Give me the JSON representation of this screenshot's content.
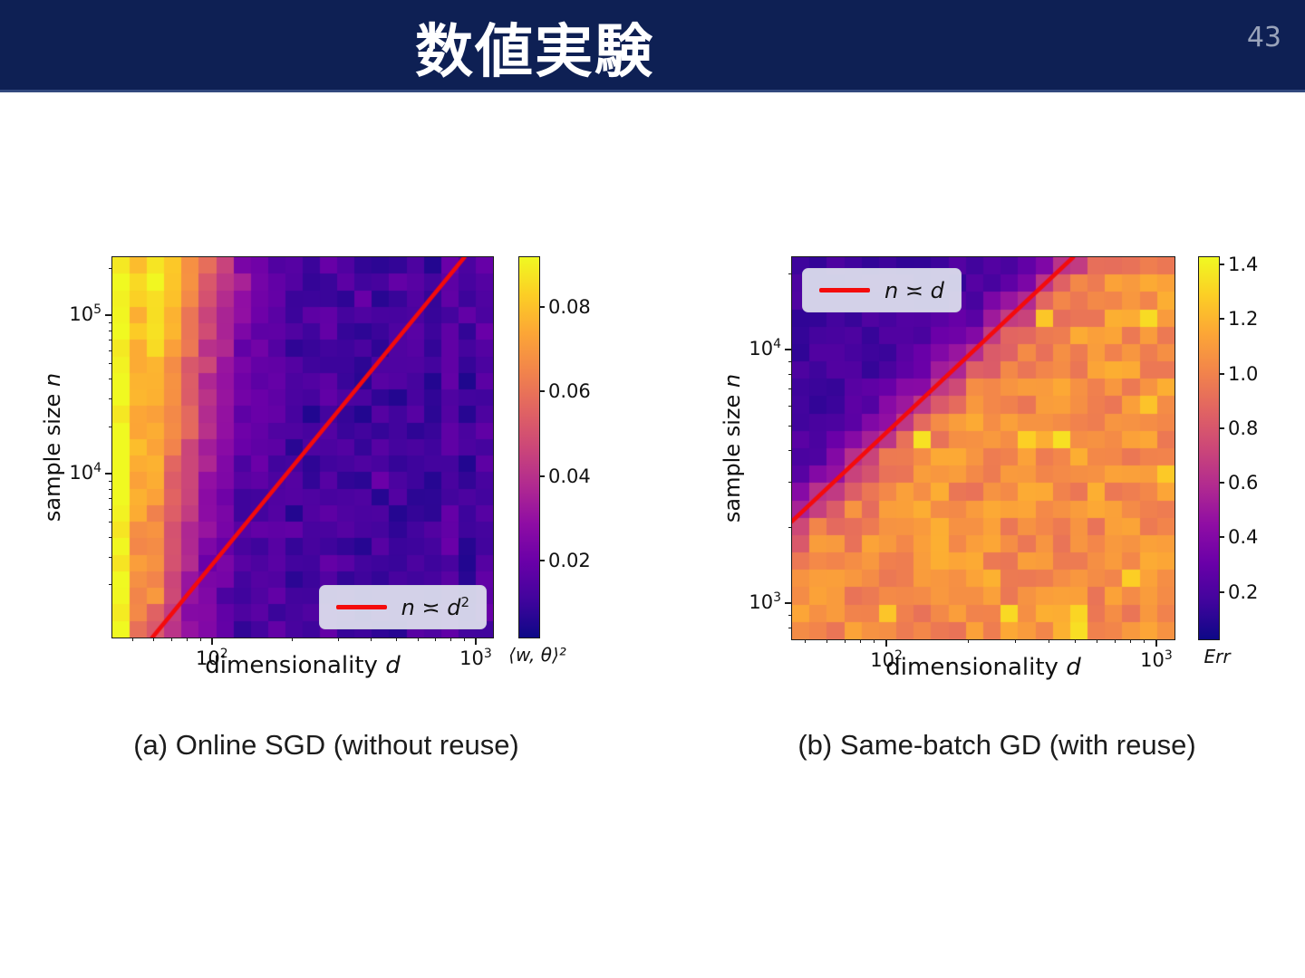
{
  "slide": {
    "title": "数値実験",
    "page_number": "43",
    "header_bg": "#0e2054",
    "header_line": "#33497e"
  },
  "captions": {
    "a": "(a) Online SGD (without reuse)",
    "b": "(b) Same-batch GD (with reuse)"
  },
  "colormap": {
    "name": "plasma",
    "stops": [
      [
        0.0,
        "#0d0887"
      ],
      [
        0.1,
        "#41049d"
      ],
      [
        0.2,
        "#6a00a8"
      ],
      [
        0.3,
        "#8f0da4"
      ],
      [
        0.4,
        "#b12a90"
      ],
      [
        0.5,
        "#cc4778"
      ],
      [
        0.6,
        "#e16462"
      ],
      [
        0.7,
        "#f2844b"
      ],
      [
        0.8,
        "#fca636"
      ],
      [
        0.9,
        "#fcce25"
      ],
      [
        1.0,
        "#f0f921"
      ]
    ]
  },
  "line_color": "#f40b0b",
  "chart_data": [
    {
      "id": "a",
      "type": "heatmap",
      "caption": "(a) Online SGD (without reuse)",
      "xlabel": {
        "text": "dimensionality ",
        "math": "d"
      },
      "ylabel": {
        "text": "sample size ",
        "math": "n"
      },
      "x_log_range": [
        1.622,
        3.065
      ],
      "y_log_range": [
        2.966,
        5.368
      ],
      "x_ticks": [
        {
          "b": "10",
          "e": "2",
          "frac": 0.262
        },
        {
          "b": "10",
          "e": "3",
          "frac": 0.955
        }
      ],
      "y_ticks": [
        {
          "b": "10",
          "e": "4",
          "frac": 0.431
        },
        {
          "b": "10",
          "e": "5",
          "frac": 0.847
        }
      ],
      "grid": {
        "cols": 22,
        "rows": 23
      },
      "cmap_range": [
        0.002,
        0.092
      ],
      "colorbar": {
        "label": "⟨w, θ⟩²",
        "ticks": [
          {
            "label": "0.08",
            "value": 0.08
          },
          {
            "label": "0.06",
            "value": 0.06
          },
          {
            "label": "0.04",
            "value": 0.04
          },
          {
            "label": "0.02",
            "value": 0.02
          }
        ]
      },
      "red_line": {
        "p1": [
          0.105,
          0.0
        ],
        "p2": [
          0.925,
          1.0
        ],
        "legend": {
          "lhs": "n",
          "rel": " ≍ ",
          "rhs": "d",
          "sup": "2"
        },
        "legend_pos": "bottom-right"
      },
      "field": {
        "model": "x-threshold",
        "lo": 0.012,
        "hi": 0.088,
        "center_fx_bottom": 0.12,
        "center_fx_top": 0.27,
        "width": 0.065,
        "noise_cell": 0.005,
        "noise_col": 0.004,
        "edge_boost_fx": 0.04,
        "edge_boost_value": 0.091,
        "seed": 7
      },
      "sample_values_d50_to_d1000_top_to_bottom": [
        [
          0.09,
          0.07,
          0.05,
          0.03,
          0.02,
          0.015
        ],
        [
          0.09,
          0.065,
          0.045,
          0.025,
          0.018,
          0.012
        ],
        [
          0.085,
          0.06,
          0.04,
          0.022,
          0.015,
          0.012
        ],
        [
          0.085,
          0.055,
          0.03,
          0.02,
          0.013,
          0.011
        ],
        [
          0.08,
          0.05,
          0.025,
          0.015,
          0.012,
          0.01
        ],
        [
          0.075,
          0.04,
          0.02,
          0.013,
          0.011,
          0.009
        ]
      ]
    },
    {
      "id": "b",
      "type": "heatmap",
      "caption": "(b) Same-batch GD (with reuse)",
      "xlabel": {
        "text": "dimensionality ",
        "math": "d"
      },
      "ylabel": {
        "text": "sample size ",
        "math": "n"
      },
      "x_log_range": [
        1.651,
        3.067
      ],
      "y_log_range": [
        2.857,
        4.364
      ],
      "x_ticks": [
        {
          "b": "10",
          "e": "2",
          "frac": 0.247
        },
        {
          "b": "10",
          "e": "3",
          "frac": 0.953
        }
      ],
      "y_ticks": [
        {
          "b": "10",
          "e": "3",
          "frac": 0.095
        },
        {
          "b": "10",
          "e": "4",
          "frac": 0.758
        }
      ],
      "grid": {
        "cols": 22,
        "rows": 22
      },
      "cmap_range": [
        0.03,
        1.43
      ],
      "colorbar": {
        "label": "Err",
        "ticks": [
          {
            "label": "1.4",
            "value": 1.4
          },
          {
            "label": "1.2",
            "value": 1.2
          },
          {
            "label": "1.0",
            "value": 1.0
          },
          {
            "label": "0.8",
            "value": 0.8
          },
          {
            "label": "0.6",
            "value": 0.6
          },
          {
            "label": "0.4",
            "value": 0.4
          },
          {
            "label": "0.2",
            "value": 0.2
          }
        ]
      },
      "red_line": {
        "p1": [
          0.0,
          0.309
        ],
        "p2": [
          0.735,
          1.0
        ],
        "legend": {
          "lhs": "n",
          "rel": " ≍ ",
          "rhs": "d",
          "sup": ""
        },
        "legend_pos": "top-left"
      },
      "field": {
        "model": "line-threshold",
        "lo": 0.18,
        "hi": 1.06,
        "line_a": 0.309,
        "line_b": 0.94,
        "width": 0.05,
        "noise_below": 0.13,
        "noise_above": 0.06,
        "spark_value": 1.36,
        "spark_prob": 0.045,
        "seed": 13
      },
      "sample_values_d50_to_d1000_top_to_bottom": [
        [
          0.2,
          0.3,
          0.6,
          1.0,
          1.1,
          1.1
        ],
        [
          0.2,
          0.35,
          0.9,
          1.1,
          1.0,
          1.1
        ],
        [
          0.25,
          0.6,
          1.05,
          1.1,
          1.1,
          1.0
        ],
        [
          0.4,
          1.0,
          1.1,
          1.0,
          1.1,
          1.1
        ],
        [
          0.8,
          1.1,
          1.0,
          1.1,
          1.0,
          1.1
        ],
        [
          1.0,
          1.05,
          1.1,
          1.0,
          1.1,
          1.05
        ]
      ]
    }
  ]
}
